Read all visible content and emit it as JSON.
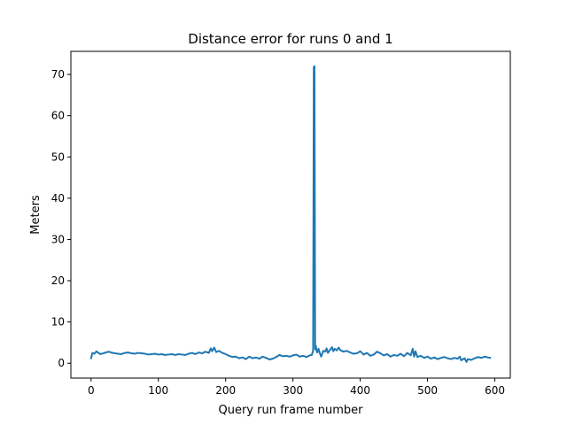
{
  "chart_data": {
    "type": "line",
    "title": "Distance error for runs 0 and 1",
    "xlabel": "Query run frame number",
    "ylabel": "Meters",
    "xlim": [
      -30,
      623
    ],
    "ylim": [
      -3.6,
      75.6
    ],
    "xticks": [
      0,
      100,
      200,
      300,
      400,
      500,
      600
    ],
    "yticks": [
      0,
      10,
      20,
      30,
      40,
      50,
      60,
      70
    ],
    "grid": false,
    "line_color": "#1f77b4",
    "series": [
      {
        "name": "",
        "x": [
          0,
          2,
          5,
          8,
          10,
          14,
          18,
          22,
          26,
          30,
          35,
          40,
          45,
          50,
          55,
          60,
          65,
          70,
          75,
          80,
          85,
          90,
          95,
          100,
          105,
          110,
          115,
          120,
          125,
          130,
          135,
          140,
          145,
          150,
          155,
          160,
          165,
          170,
          175,
          178,
          180,
          183,
          186,
          190,
          195,
          200,
          205,
          210,
          215,
          220,
          225,
          230,
          235,
          240,
          245,
          250,
          255,
          260,
          265,
          270,
          275,
          280,
          285,
          290,
          295,
          300,
          305,
          310,
          315,
          320,
          325,
          328,
          330,
          331,
          332,
          333,
          334,
          335,
          336,
          338,
          340,
          342,
          345,
          348,
          350,
          352,
          355,
          358,
          360,
          362,
          365,
          368,
          370,
          375,
          380,
          385,
          390,
          395,
          400,
          405,
          410,
          415,
          420,
          425,
          430,
          435,
          440,
          445,
          450,
          455,
          460,
          465,
          470,
          475,
          478,
          480,
          482,
          485,
          490,
          495,
          500,
          505,
          510,
          515,
          520,
          525,
          530,
          535,
          540,
          545,
          548,
          550,
          555,
          558,
          560,
          565,
          570,
          575,
          580,
          585,
          590,
          593
        ],
        "y": [
          1.2,
          2.5,
          2.3,
          2.9,
          2.6,
          2.2,
          2.4,
          2.6,
          2.8,
          2.6,
          2.4,
          2.3,
          2.2,
          2.5,
          2.6,
          2.4,
          2.3,
          2.5,
          2.4,
          2.3,
          2.1,
          2.2,
          2.3,
          2.1,
          2.2,
          2.0,
          2.1,
          2.2,
          2.0,
          2.2,
          2.1,
          2.0,
          2.3,
          2.5,
          2.2,
          2.6,
          2.4,
          2.8,
          2.5,
          3.6,
          2.9,
          3.8,
          2.7,
          3.0,
          2.5,
          2.2,
          1.8,
          1.5,
          1.6,
          1.2,
          1.4,
          1.0,
          1.6,
          1.2,
          1.4,
          1.1,
          1.6,
          1.3,
          0.9,
          1.1,
          1.5,
          2.0,
          1.7,
          1.8,
          1.6,
          1.9,
          2.1,
          1.6,
          1.8,
          1.5,
          1.9,
          2.0,
          3.1,
          71.8,
          72.0,
          3.4,
          4.2,
          3.1,
          2.6,
          3.5,
          2.4,
          1.6,
          3.0,
          2.8,
          3.6,
          2.5,
          3.2,
          3.9,
          2.9,
          3.5,
          3.1,
          3.8,
          3.2,
          2.8,
          3.0,
          2.6,
          2.3,
          2.4,
          2.9,
          2.1,
          2.5,
          1.8,
          2.1,
          2.8,
          2.4,
          1.9,
          2.2,
          1.6,
          2.0,
          1.8,
          2.3,
          1.7,
          2.5,
          1.9,
          3.5,
          1.6,
          2.9,
          1.5,
          1.8,
          1.3,
          1.6,
          1.1,
          1.4,
          1.0,
          1.3,
          1.5,
          1.2,
          1.0,
          1.3,
          1.1,
          1.6,
          0.7,
          1.2,
          0.3,
          1.0,
          0.8,
          1.2,
          1.5,
          1.3,
          1.6,
          1.4,
          1.3
        ]
      }
    ]
  }
}
